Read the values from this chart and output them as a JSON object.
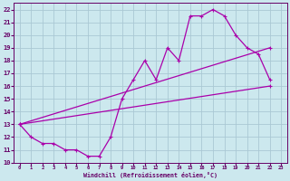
{
  "xlabel": "Windchill (Refroidissement éolien,°C)",
  "bg_color": "#cce8ee",
  "grid_color": "#aac8d4",
  "line_color": "#aa00aa",
  "xlim": [
    -0.5,
    23.5
  ],
  "ylim": [
    10,
    22.5
  ],
  "xticks": [
    0,
    1,
    2,
    3,
    4,
    5,
    6,
    7,
    8,
    9,
    10,
    11,
    12,
    13,
    14,
    15,
    16,
    17,
    18,
    19,
    20,
    21,
    22,
    23
  ],
  "yticks": [
    10,
    11,
    12,
    13,
    14,
    15,
    16,
    17,
    18,
    19,
    20,
    21,
    22
  ],
  "line1_x": [
    0,
    1,
    2,
    3,
    4,
    5,
    6,
    7,
    8,
    9,
    10,
    11,
    12,
    13,
    14,
    15,
    16,
    17,
    18,
    19,
    20,
    21,
    22
  ],
  "line1_y": [
    13,
    12,
    11.5,
    11.5,
    11,
    11,
    10.5,
    10.5,
    12,
    15,
    16.5,
    18,
    16.5,
    19,
    18,
    21.5,
    21.5,
    22,
    21.5,
    20,
    19,
    18.5,
    16.5
  ],
  "line2_x": [
    0,
    22
  ],
  "line2_y": [
    13,
    19
  ],
  "line3_x": [
    0,
    22
  ],
  "line3_y": [
    13,
    16
  ]
}
